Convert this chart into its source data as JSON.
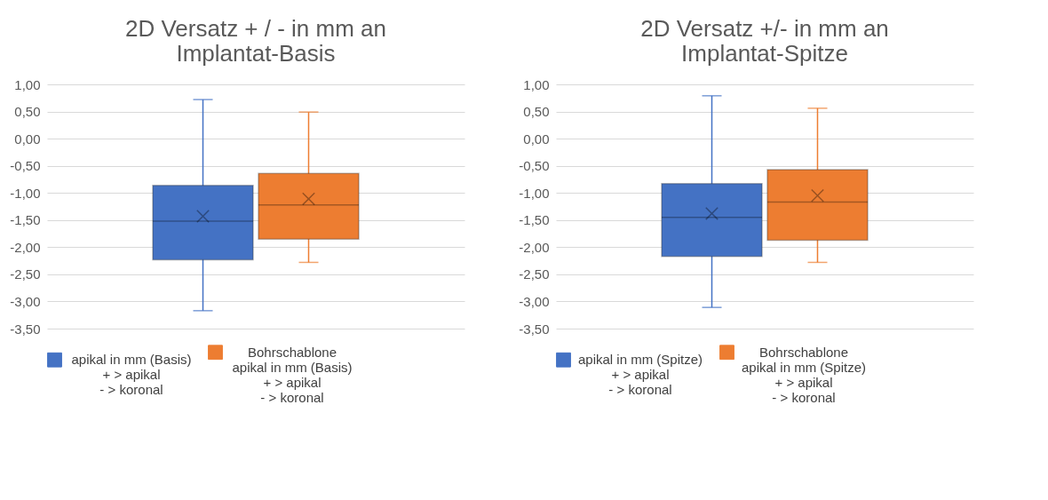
{
  "chart_data": [
    {
      "type": "box",
      "title": "2D Versatz + / - in mm an\nImplantat-Basis",
      "categories": [
        null
      ],
      "ylim": [
        -3.5,
        1
      ],
      "yticks": [
        {
          "value": 1,
          "label": "1,00"
        },
        {
          "value": 0.5,
          "label": "0,50"
        },
        {
          "value": 0,
          "label": "0,00"
        },
        {
          "value": -0.5,
          "label": "-0,50"
        },
        {
          "value": -1,
          "label": "-1,00"
        },
        {
          "value": -1.5,
          "label": "-1,50"
        },
        {
          "value": -2,
          "label": "-2,00"
        },
        {
          "value": -2.5,
          "label": "-2,50"
        },
        {
          "value": -3,
          "label": "-3,00"
        },
        {
          "value": -3.5,
          "label": "-3,50"
        }
      ],
      "grid": "y",
      "legend": "bottom",
      "tick_labels": "y",
      "series": [
        {
          "name": "apikal  in mm (Basis)\n+ > apikal\n- > koronal",
          "color": "#4472c4",
          "boxes": [
            {
              "low": -3.17,
              "q1": -2.23,
              "median": -1.52,
              "q3": -0.86,
              "high": 0.72,
              "mean": -1.43
            }
          ]
        },
        {
          "name": "Bohrschablone\napikal  in mm (Basis)\n+ > apikal\n- > koronal",
          "color": "#ed7d31",
          "boxes": [
            {
              "low": -2.28,
              "q1": -1.85,
              "median": -1.22,
              "q3": -0.64,
              "high": 0.49,
              "mean": -1.11
            }
          ]
        }
      ]
    },
    {
      "type": "box",
      "title": "2D Versatz +/- in mm an\nImplantat-Spitze",
      "categories": [
        null
      ],
      "ylim": [
        -3.5,
        1
      ],
      "yticks": [
        {
          "value": 1,
          "label": "1,00"
        },
        {
          "value": 0.5,
          "label": "0,50"
        },
        {
          "value": 0,
          "label": "0,00"
        },
        {
          "value": -0.5,
          "label": "-0,50"
        },
        {
          "value": -1,
          "label": "-1,00"
        },
        {
          "value": -1.5,
          "label": "-1,50"
        },
        {
          "value": -2,
          "label": "-2,00"
        },
        {
          "value": -2.5,
          "label": "-2,50"
        },
        {
          "value": -3,
          "label": "-3,00"
        },
        {
          "value": -3.5,
          "label": "-3,50"
        }
      ],
      "grid": "y",
      "legend": "bottom",
      "tick_labels": "y",
      "series": [
        {
          "name": "apikal  in mm (Spitze)\n+ > apikal\n- > koronal",
          "color": "#4472c4",
          "boxes": [
            {
              "low": -3.11,
              "q1": -2.17,
              "median": -1.45,
              "q3": -0.83,
              "high": 0.79,
              "mean": -1.38
            }
          ]
        },
        {
          "name": "Bohrschablone\napikal  in mm (Spitze)\n+ > apikal\n- > koronal",
          "color": "#ed7d31",
          "boxes": [
            {
              "low": -2.28,
              "q1": -1.87,
              "median": -1.17,
              "q3": -0.57,
              "high": 0.56,
              "mean": -1.05
            }
          ]
        }
      ]
    }
  ]
}
